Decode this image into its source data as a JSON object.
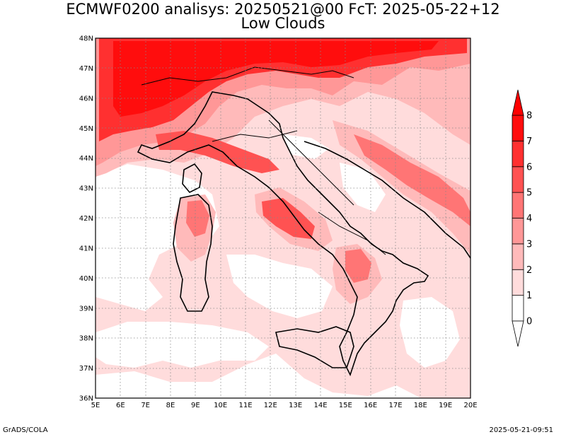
{
  "title": {
    "line1": "ECMWF0200 analisys: 20250521@00 FcT: 2025-05-22+12",
    "line2": "Low Clouds"
  },
  "map": {
    "projection": "lat-lon",
    "lon_range": [
      5,
      20
    ],
    "lat_range": [
      36,
      48
    ],
    "lon_labels": [
      "5E",
      "6E",
      "7E",
      "8E",
      "9E",
      "10E",
      "11E",
      "12E",
      "13E",
      "14E",
      "15E",
      "16E",
      "17E",
      "18E",
      "19E",
      "20E"
    ],
    "lat_labels": [
      "36N",
      "37N",
      "38N",
      "39N",
      "40N",
      "41N",
      "42N",
      "43N",
      "44N",
      "45N",
      "46N",
      "47N",
      "48N"
    ],
    "gridlines": true,
    "gridline_style": "dotted"
  },
  "colorbar": {
    "levels": [
      "0",
      "1",
      "2",
      "3",
      "4",
      "5",
      "6",
      "7",
      "8"
    ],
    "colors": [
      "#ffffff",
      "#ffdcdc",
      "#ffbaba",
      "#ff9797",
      "#ff7575",
      "#ff5252",
      "#ff3030",
      "#ff0d0d"
    ],
    "triangle_top": "#ff0000",
    "triangle_bottom": "#ffffff",
    "placement": "right"
  },
  "footer": {
    "left": "GrADS/COLA",
    "right": "2025-05-21-09:51"
  }
}
